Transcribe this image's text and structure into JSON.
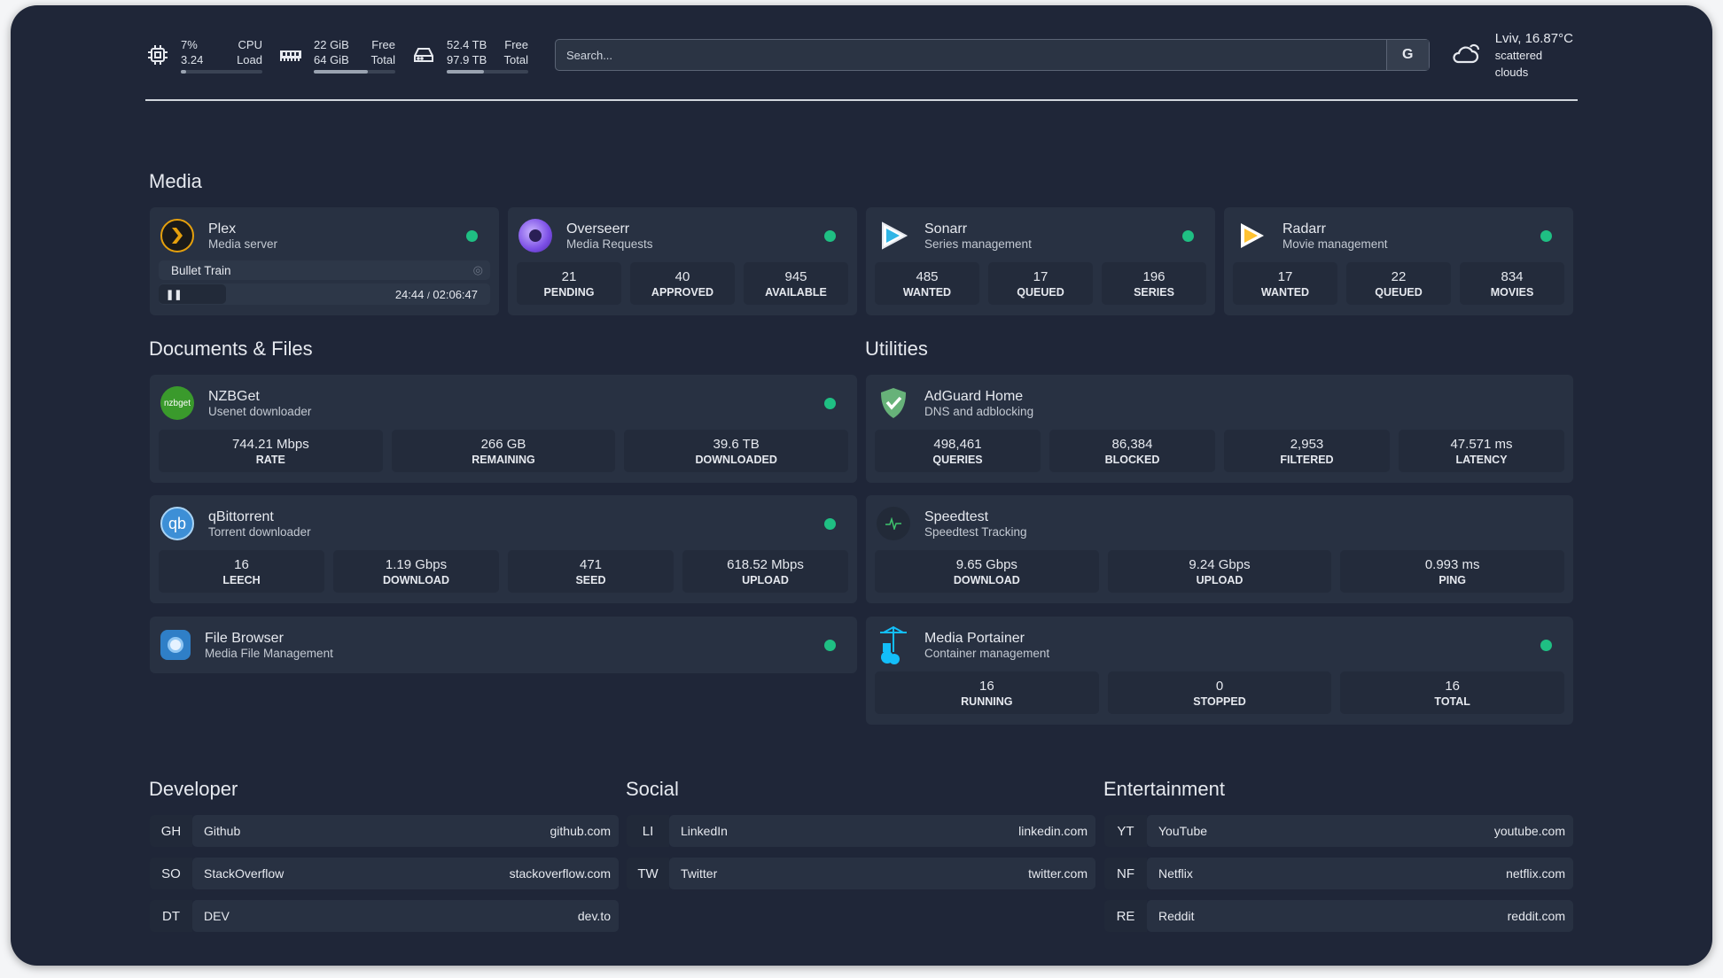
{
  "colors": {
    "background": "#1f2638",
    "card": "#283142",
    "status_ok": "#1fbf83"
  },
  "topbar": {
    "cpu": {
      "icon": "cpu-icon",
      "usage": "7%",
      "usage_label": "CPU",
      "load": "3.24",
      "load_label": "Load",
      "percent": 7
    },
    "memory": {
      "icon": "memory-icon",
      "free": "22 GiB",
      "free_label": "Free",
      "total": "64 GiB",
      "total_label": "Total",
      "percent": 66
    },
    "disk": {
      "icon": "disk-icon",
      "free": "52.4 TB",
      "free_label": "Free",
      "total": "97.9 TB",
      "total_label": "Total",
      "percent": 46
    },
    "search": {
      "placeholder": "Search...",
      "engine_label": "G"
    },
    "weather": {
      "icon": "cloud-icon",
      "location_temp": "Lviv, 16.87°C",
      "condition": "scattered clouds"
    }
  },
  "media": {
    "title": "Media",
    "cards": [
      {
        "name": "Plex",
        "desc": "Media server",
        "icon": "plex-icon",
        "now_playing": {
          "title": "Bullet Train",
          "time": "24:44",
          "duration": "02:06:47",
          "sep": "/"
        }
      },
      {
        "name": "Overseerr",
        "desc": "Media Requests",
        "icon": "overseerr-icon",
        "stats": [
          {
            "v": "21",
            "l": "PENDING"
          },
          {
            "v": "40",
            "l": "APPROVED"
          },
          {
            "v": "945",
            "l": "AVAILABLE"
          }
        ]
      },
      {
        "name": "Sonarr",
        "desc": "Series management",
        "icon": "sonarr-icon",
        "stats": [
          {
            "v": "485",
            "l": "WANTED"
          },
          {
            "v": "17",
            "l": "QUEUED"
          },
          {
            "v": "196",
            "l": "SERIES"
          }
        ]
      },
      {
        "name": "Radarr",
        "desc": "Movie management",
        "icon": "radarr-icon",
        "stats": [
          {
            "v": "17",
            "l": "WANTED"
          },
          {
            "v": "22",
            "l": "QUEUED"
          },
          {
            "v": "834",
            "l": "MOVIES"
          }
        ]
      }
    ]
  },
  "documents": {
    "title": "Documents & Files",
    "cards": [
      {
        "name": "NZBGet",
        "desc": "Usenet downloader",
        "icon": "nzbget-icon",
        "logo_text": "nzbget",
        "stats": [
          {
            "v": "744.21 Mbps",
            "l": "RATE"
          },
          {
            "v": "266 GB",
            "l": "REMAINING"
          },
          {
            "v": "39.6 TB",
            "l": "DOWNLOADED"
          }
        ]
      },
      {
        "name": "qBittorrent",
        "desc": "Torrent downloader",
        "icon": "qbittorrent-icon",
        "logo_text": "qb",
        "stats": [
          {
            "v": "16",
            "l": "LEECH"
          },
          {
            "v": "1.19 Gbps",
            "l": "DOWNLOAD"
          },
          {
            "v": "471",
            "l": "SEED"
          },
          {
            "v": "618.52 Mbps",
            "l": "UPLOAD"
          }
        ]
      },
      {
        "name": "File Browser",
        "desc": "Media File Management",
        "icon": "filebrowser-icon"
      }
    ]
  },
  "utilities": {
    "title": "Utilities",
    "cards": [
      {
        "name": "AdGuard Home",
        "desc": "DNS and adblocking",
        "icon": "adguard-icon",
        "stats": [
          {
            "v": "498,461",
            "l": "QUERIES"
          },
          {
            "v": "86,384",
            "l": "BLOCKED"
          },
          {
            "v": "2,953",
            "l": "FILTERED"
          },
          {
            "v": "47.571 ms",
            "l": "LATENCY"
          }
        ]
      },
      {
        "name": "Speedtest",
        "desc": "Speedtest Tracking",
        "icon": "speedtest-icon",
        "stats": [
          {
            "v": "9.65 Gbps",
            "l": "DOWNLOAD"
          },
          {
            "v": "9.24 Gbps",
            "l": "UPLOAD"
          },
          {
            "v": "0.993 ms",
            "l": "PING"
          }
        ]
      },
      {
        "name": "Media Portainer",
        "desc": "Container management",
        "icon": "portainer-icon",
        "stats": [
          {
            "v": "16",
            "l": "RUNNING"
          },
          {
            "v": "0",
            "l": "STOPPED"
          },
          {
            "v": "16",
            "l": "TOTAL"
          }
        ]
      }
    ]
  },
  "bookmarks": [
    {
      "title": "Developer",
      "items": [
        {
          "abbr": "GH",
          "name": "Github",
          "host": "github.com"
        },
        {
          "abbr": "SO",
          "name": "StackOverflow",
          "host": "stackoverflow.com"
        },
        {
          "abbr": "DT",
          "name": "DEV",
          "host": "dev.to"
        }
      ]
    },
    {
      "title": "Social",
      "items": [
        {
          "abbr": "LI",
          "name": "LinkedIn",
          "host": "linkedin.com"
        },
        {
          "abbr": "TW",
          "name": "Twitter",
          "host": "twitter.com"
        }
      ]
    },
    {
      "title": "Entertainment",
      "items": [
        {
          "abbr": "YT",
          "name": "YouTube",
          "host": "youtube.com"
        },
        {
          "abbr": "NF",
          "name": "Netflix",
          "host": "netflix.com"
        },
        {
          "abbr": "RE",
          "name": "Reddit",
          "host": "reddit.com"
        }
      ]
    }
  ]
}
